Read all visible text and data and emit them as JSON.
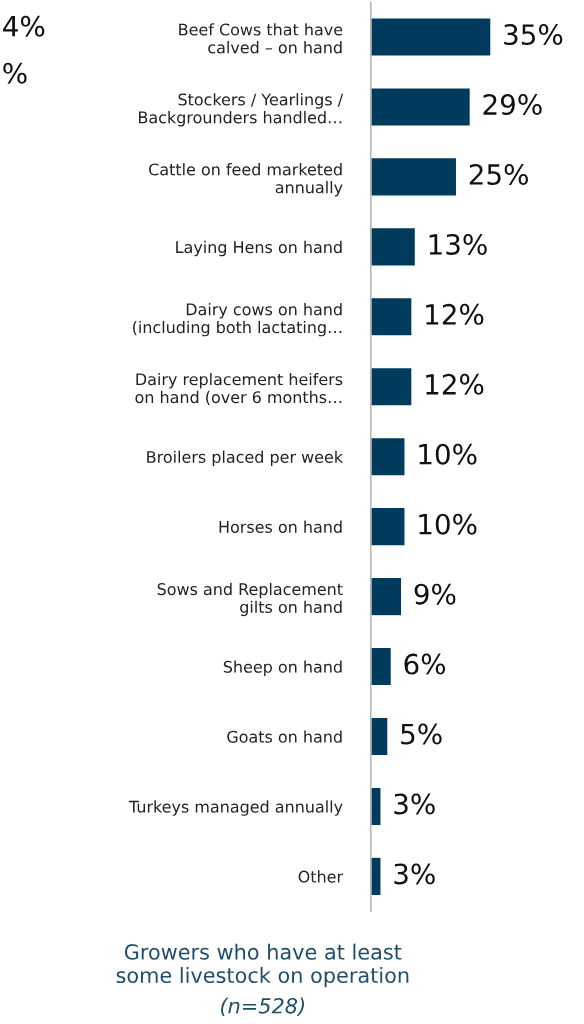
{
  "chart_data": {
    "type": "bar",
    "orientation": "horizontal",
    "title": "Growers who have at least\nsome livestock on operation",
    "subtitle": "(n=528)",
    "categories": [
      "Beef Cows that have\ncalved – on hand",
      "Stockers / Yearlings /\nBackgrounders handled…",
      "Cattle on feed marketed\nannually",
      "Laying Hens on hand",
      "Dairy cows on hand\n(including both lactating…",
      "Dairy replacement heifers\non hand (over 6 months…",
      "Broilers placed per week",
      "Horses on hand",
      "Sows and Replacement\ngilts on hand",
      "Sheep on hand",
      "Goats on hand",
      "Turkeys managed annually",
      "Other"
    ],
    "values": [
      35,
      29,
      25,
      13,
      12,
      12,
      10,
      10,
      9,
      6,
      5,
      3,
      3
    ],
    "color": "#003a5d",
    "value_labels": [
      "35%",
      "29%",
      "25%",
      "13%",
      "12%",
      "12%",
      "10%",
      "10%",
      "9%",
      "6%",
      "5%",
      "3%",
      "3%"
    ],
    "annotations": [
      "4%",
      "%"
    ]
  }
}
